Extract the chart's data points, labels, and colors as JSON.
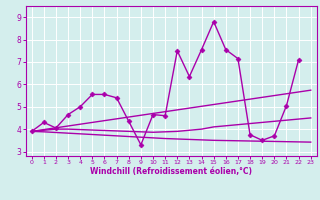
{
  "xlabel": "Windchill (Refroidissement éolien,°C)",
  "xlim": [
    -0.5,
    23.5
  ],
  "ylim": [
    2.8,
    9.5
  ],
  "yticks": [
    3,
    4,
    5,
    6,
    7,
    8,
    9
  ],
  "xticks": [
    0,
    1,
    2,
    3,
    4,
    5,
    6,
    7,
    8,
    9,
    10,
    11,
    12,
    13,
    14,
    15,
    16,
    17,
    18,
    19,
    20,
    21,
    22,
    23
  ],
  "bg_color": "#d4eeed",
  "line_color": "#aa00aa",
  "grid_color": "#ffffff",
  "lines": [
    {
      "x": [
        0,
        1,
        2,
        3,
        4,
        5,
        6,
        7,
        8,
        9,
        10,
        11,
        12,
        13,
        14,
        15,
        16,
        17,
        18,
        19,
        20,
        21,
        22,
        23
      ],
      "y": [
        3.9,
        4.3,
        4.05,
        4.65,
        5.0,
        5.55,
        5.55,
        5.4,
        4.35,
        3.3,
        4.65,
        4.6,
        7.5,
        6.35,
        7.55,
        8.8,
        7.55,
        7.15,
        3.75,
        3.5,
        3.7,
        5.05,
        7.1,
        null
      ],
      "marker": "D",
      "ms": 2.5,
      "lw": 1.0,
      "has_markers": true
    },
    {
      "x": [
        0,
        1,
        2,
        3,
        4,
        5,
        6,
        7,
        8,
        9,
        10,
        11,
        12,
        13,
        14,
        15,
        16,
        17,
        18,
        19,
        20,
        21,
        22,
        23
      ],
      "y": [
        3.9,
        3.98,
        4.06,
        4.14,
        4.22,
        4.3,
        4.38,
        4.46,
        4.54,
        4.62,
        4.7,
        4.78,
        4.86,
        4.94,
        5.02,
        5.1,
        5.18,
        5.26,
        5.34,
        5.42,
        5.5,
        5.58,
        5.66,
        5.74
      ],
      "marker": null,
      "ms": 0,
      "lw": 1.0,
      "has_markers": false
    },
    {
      "x": [
        0,
        1,
        2,
        3,
        4,
        5,
        6,
        7,
        8,
        9,
        10,
        11,
        12,
        13,
        14,
        15,
        16,
        17,
        18,
        19,
        20,
        21,
        22,
        23
      ],
      "y": [
        3.9,
        3.95,
        4.0,
        4.0,
        3.98,
        3.96,
        3.94,
        3.92,
        3.9,
        3.88,
        3.86,
        3.88,
        3.9,
        3.95,
        4.0,
        4.1,
        4.15,
        4.2,
        4.25,
        4.3,
        4.35,
        4.4,
        4.45,
        4.5
      ],
      "marker": null,
      "ms": 0,
      "lw": 1.0,
      "has_markers": false
    },
    {
      "x": [
        0,
        1,
        2,
        3,
        4,
        5,
        6,
        7,
        8,
        9,
        10,
        11,
        12,
        13,
        14,
        15,
        16,
        17,
        18,
        19,
        20,
        21,
        22,
        23
      ],
      "y": [
        3.9,
        3.88,
        3.85,
        3.82,
        3.79,
        3.76,
        3.73,
        3.7,
        3.67,
        3.64,
        3.61,
        3.58,
        3.56,
        3.54,
        3.52,
        3.5,
        3.49,
        3.48,
        3.47,
        3.46,
        3.45,
        3.44,
        3.43,
        3.42
      ],
      "marker": null,
      "ms": 0,
      "lw": 1.0,
      "has_markers": false
    }
  ]
}
